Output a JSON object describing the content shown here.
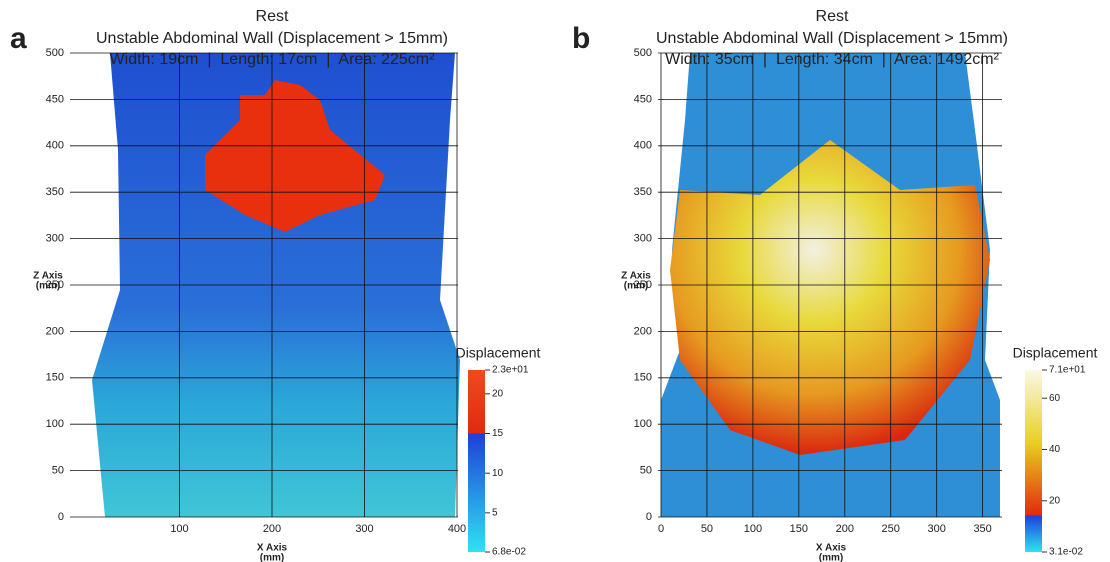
{
  "panels": [
    {
      "label": "a",
      "title": "Rest",
      "subtitle": "Unstable Abdominal Wall (Displacement > 15mm)",
      "measurements": "Width: 19cm  |  Length: 17cm  |  Area: 225cm²",
      "x_axis_label": [
        "X Axis",
        "(mm)"
      ],
      "z_axis_label": [
        "Z Axis",
        "(mm)"
      ],
      "xlim": [
        0,
        400
      ],
      "xticks": [
        100,
        200,
        300,
        400
      ],
      "zlim": [
        0,
        500
      ],
      "zticks": [
        0,
        50,
        100,
        150,
        200,
        250,
        300,
        350,
        400,
        450,
        500
      ],
      "colorbar": {
        "title": "Displacement",
        "lim": [
          0.068,
          23
        ],
        "ticks": [
          {
            "value": 23,
            "label": "2.3e+01"
          },
          20,
          15,
          10,
          5,
          {
            "value": 0.068,
            "label": "6.8e-02"
          }
        ]
      }
    },
    {
      "label": "b",
      "title": "Rest",
      "subtitle": "Unstable Abdominal Wall (Displacement > 15mm)",
      "measurements": "Width: 35cm  |  Length: 34cm  |  Area: 1492cm²",
      "x_axis_label": [
        "X Axis",
        "(mm)"
      ],
      "z_axis_label": [
        "Z Axis",
        "(mm)"
      ],
      "xlim": [
        0,
        370
      ],
      "xticks": [
        0,
        50,
        100,
        150,
        200,
        250,
        300,
        350
      ],
      "zlim": [
        0,
        500
      ],
      "zticks": [
        0,
        50,
        100,
        150,
        200,
        250,
        300,
        350,
        400,
        450,
        500
      ],
      "colorbar": {
        "title": "Displacement",
        "lim": [
          0.031,
          71
        ],
        "ticks": [
          {
            "value": 71,
            "label": "7.1e+01"
          },
          60,
          40,
          20,
          {
            "value": 0.031,
            "label": "3.1e-02"
          }
        ]
      }
    }
  ]
}
